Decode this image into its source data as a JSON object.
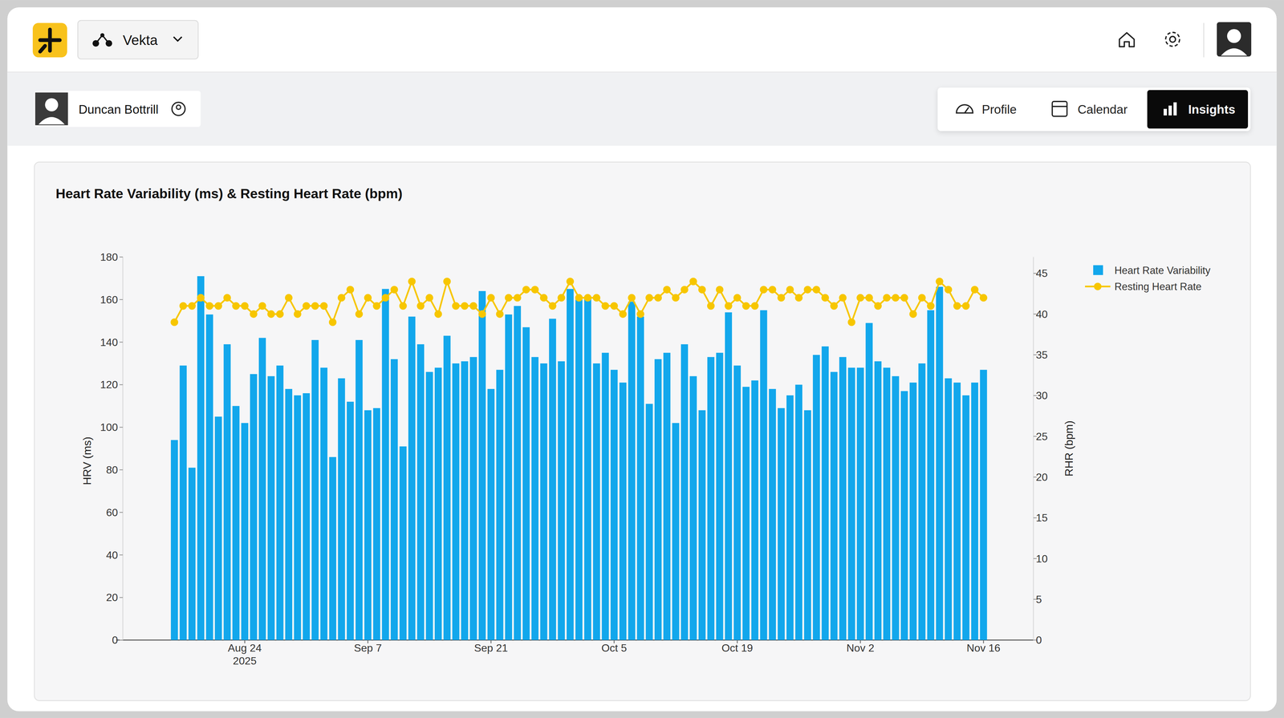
{
  "header": {
    "workspace": "Vekta"
  },
  "athlete": {
    "name": "Duncan Bottrill"
  },
  "tabs": [
    {
      "label": "Profile",
      "active": false
    },
    {
      "label": "Calendar",
      "active": false
    },
    {
      "label": "Insights",
      "active": true
    }
  ],
  "chart_data": {
    "type": "bar",
    "title": "Heart Rate Variability (ms) & Resting Heart Rate (bpm)",
    "y_label": "HRV (ms)",
    "y2_label": "RHR (bpm)",
    "categories": [
      null,
      null,
      null,
      null,
      null,
      null,
      null,
      null,
      "Aug 24\n2025",
      null,
      null,
      null,
      null,
      null,
      null,
      null,
      null,
      null,
      null,
      null,
      null,
      null,
      "Sep 7",
      null,
      null,
      null,
      null,
      null,
      null,
      null,
      null,
      null,
      null,
      null,
      null,
      null,
      "Sep 21",
      null,
      null,
      null,
      null,
      null,
      null,
      null,
      null,
      null,
      null,
      null,
      null,
      null,
      "Oct 5",
      null,
      null,
      null,
      null,
      null,
      null,
      null,
      null,
      null,
      null,
      null,
      null,
      null,
      "Oct 19",
      null,
      null,
      null,
      null,
      null,
      null,
      null,
      null,
      null,
      null,
      null,
      null,
      null,
      "Nov 2",
      null,
      null,
      null,
      null,
      null,
      null,
      null,
      null,
      null,
      null,
      null,
      null,
      null,
      "Nov 16"
    ],
    "series": [
      {
        "name": "Heart Rate Variability",
        "type": "bar",
        "color": "#12a7ec",
        "values": [
          94,
          129,
          81,
          171,
          153,
          105,
          139,
          110,
          102,
          125,
          142,
          124,
          129,
          118,
          115,
          116,
          141,
          128,
          86,
          123,
          112,
          141,
          108,
          109,
          165,
          132,
          91,
          152,
          139,
          126,
          128,
          143,
          130,
          131,
          133,
          164,
          118,
          127,
          153,
          157,
          147,
          133,
          130,
          151,
          131,
          165,
          160,
          161,
          130,
          135,
          127,
          121,
          159,
          152,
          111,
          132,
          135,
          102,
          139,
          124,
          108,
          133,
          135,
          154,
          129,
          119,
          122,
          155,
          118,
          109,
          115,
          120,
          108,
          134,
          138,
          126,
          133,
          128,
          128,
          149,
          131,
          128,
          124,
          117,
          121,
          130,
          155,
          166,
          123,
          121,
          115,
          121,
          127
        ]
      },
      {
        "name": "Resting Heart Rate",
        "type": "line",
        "axis": "y2",
        "color": "#f7c600",
        "marker": "circle",
        "values": [
          39,
          41,
          41,
          42,
          41,
          41,
          42,
          41,
          41,
          40,
          41,
          40,
          40,
          42,
          40,
          41,
          41,
          41,
          39,
          42,
          43,
          40,
          42,
          41,
          42,
          43,
          41,
          44,
          41,
          42,
          40,
          44,
          41,
          41,
          41,
          40,
          42,
          40,
          42,
          42,
          43,
          43,
          42,
          41,
          42,
          44,
          42,
          42,
          42,
          41,
          41,
          40,
          42,
          40,
          42,
          42,
          43,
          42,
          43,
          44,
          43,
          41,
          43,
          41,
          42,
          41,
          41,
          43,
          43,
          42,
          43,
          42,
          43,
          43,
          42,
          41,
          42,
          39,
          42,
          42,
          41,
          42,
          42,
          42,
          40,
          42,
          41,
          44,
          43,
          41,
          41,
          43,
          42
        ]
      }
    ],
    "ylim": [
      0,
      180
    ],
    "yticks": [
      0,
      20,
      40,
      60,
      80,
      100,
      120,
      140,
      160,
      180
    ],
    "y2lim": [
      0,
      47
    ],
    "y2ticks": [
      0,
      5,
      10,
      15,
      20,
      25,
      30,
      35,
      40,
      45
    ],
    "grid": false,
    "legend": "right"
  }
}
